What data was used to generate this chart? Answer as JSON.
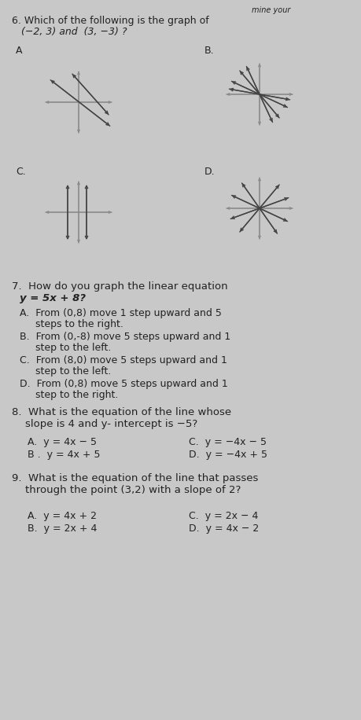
{
  "bg_color": "#c8c8c8",
  "title_top": "mine your",
  "q6_line1": "6. Which of the following is the graph of",
  "q6_line2": "   (−2, 3) and  (3, −3) ?",
  "q7_line1": "7.  How do you graph the linear equation",
  "q7_line2": "    y = 5x + 8?",
  "q7_A": "A.  From (0,8) move 1 step upward and 5",
  "q7_A2": "     steps to the right.",
  "q7_B": "B.  From (0,-8) move 5 steps upward and 1",
  "q7_B2": "     step to the left.",
  "q7_C": "C.  From (8,0) move 5 steps upward and 1",
  "q7_C2": "     step to the left.",
  "q7_D": "D.  From (0,8) move 5 steps upward and 1",
  "q7_D2": "     step to the right.",
  "q8_line1": "8.  What is the equation of the line whose",
  "q8_line2": "    slope is 4 and y- intercept is −5?",
  "q8_A": "A.  y = 4x − 5",
  "q8_B": "B .  y = 4x + 5",
  "q8_C": "C.  y = −4x − 5",
  "q8_D": "D.  y = −4x + 5",
  "q9_line1": "9.  What is the equation of the line that passes",
  "q9_line2": "    through the point (3,2) with a slope of 2?",
  "q9_A": "A.  y = 4x + 2",
  "q9_B": "B.  y = 2x + 4",
  "q9_C": "C.  y = 2x − 4",
  "q9_D": "D.  y = 4x − 2",
  "lc": "#444444",
  "tc": "#222222",
  "ac": "#888888"
}
